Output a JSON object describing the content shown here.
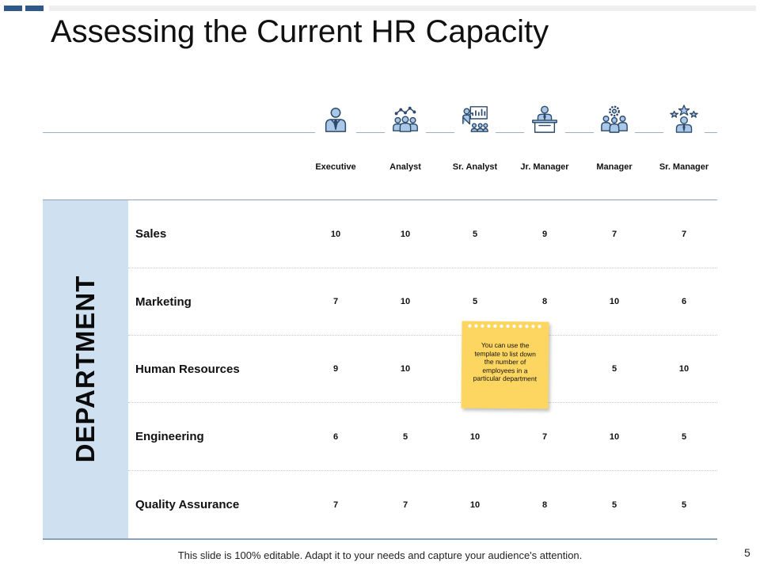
{
  "slide": {
    "title": "Assessing the Current HR Capacity",
    "side_label": "DEPARTMENT",
    "footer": "This slide is 100% editable. Adapt it to your needs and capture your audience's attention.",
    "page_number": "5"
  },
  "columns": [
    {
      "label": "Executive",
      "icon": "executive-icon"
    },
    {
      "label": "Analyst",
      "icon": "analyst-group-icon"
    },
    {
      "label": "Sr. Analyst",
      "icon": "presentation-board-icon"
    },
    {
      "label": "Jr. Manager",
      "icon": "desk-manager-icon"
    },
    {
      "label": "Manager",
      "icon": "team-gear-icon"
    },
    {
      "label": "Sr. Manager",
      "icon": "star-manager-icon"
    }
  ],
  "rows": [
    {
      "label": "Sales",
      "values": [
        "10",
        "10",
        "5",
        "9",
        "7",
        "7"
      ]
    },
    {
      "label": "Marketing",
      "values": [
        "7",
        "10",
        "5",
        "8",
        "10",
        "6"
      ]
    },
    {
      "label": "Human Resources",
      "values": [
        "9",
        "10",
        "",
        "",
        "5",
        "10"
      ]
    },
    {
      "label": "Engineering",
      "values": [
        "6",
        "5",
        "10",
        "7",
        "10",
        "5"
      ]
    },
    {
      "label": "Quality Assurance",
      "values": [
        "7",
        "7",
        "10",
        "8",
        "5",
        "5"
      ]
    }
  ],
  "note": {
    "text": "You can use the template to list down the number of employees in a particular department",
    "color": "#fdd662"
  },
  "colors": {
    "accent": "#2f5a87",
    "icon_stroke": "#2e4a6b",
    "icon_fill": "#a9c7e6",
    "panel": "#cfe0f0"
  }
}
